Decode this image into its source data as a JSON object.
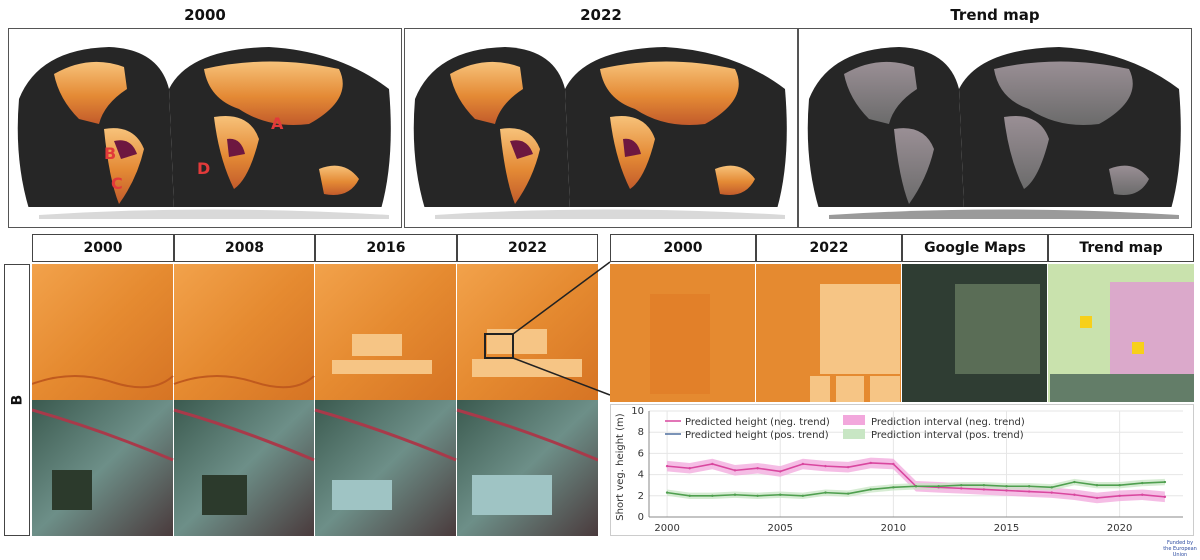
{
  "top_titles": [
    "2000",
    "2022",
    "Trend map"
  ],
  "map_labels": [
    "A",
    "B",
    "C",
    "D"
  ],
  "grid_headers": [
    "2000",
    "2008",
    "2016",
    "2022"
  ],
  "side_label": "B",
  "zoom_headers": [
    "2000",
    "2022",
    "Google Maps",
    "Trend map"
  ],
  "footer": [
    "Funded by",
    "the European Union"
  ],
  "colors": {
    "high": "#f7b56a",
    "mid": "#e07b25",
    "low": "#6d1740",
    "ocean": "#262626",
    "neg": "#e36fb7",
    "pos": "#6cbf6a"
  },
  "chart_data": {
    "type": "line",
    "ylabel": "Short veg. height (m)",
    "xlabel": "",
    "xlim": [
      1999.2,
      2022.8
    ],
    "ylim": [
      0,
      10
    ],
    "x_ticks": [
      2000,
      2005,
      2010,
      2015,
      2020
    ],
    "y_ticks": [
      0,
      2,
      4,
      6,
      8,
      10
    ],
    "grid": true,
    "legend": "top-left",
    "legend_entries": [
      "Predicted height (neg. trend)",
      "Predicted height (pos. trend)",
      "Prediction interval (neg. trend)",
      "Prediction interval (pos. trend)"
    ],
    "x": [
      2000,
      2001,
      2002,
      2003,
      2004,
      2005,
      2006,
      2007,
      2008,
      2009,
      2010,
      2011,
      2012,
      2013,
      2014,
      2015,
      2016,
      2017,
      2018,
      2019,
      2020,
      2021,
      2022
    ],
    "series": [
      {
        "name": "Predicted height (neg. trend)",
        "color": "#d9479f",
        "values": [
          4.8,
          4.6,
          5.0,
          4.4,
          4.6,
          4.3,
          5.0,
          4.8,
          4.7,
          5.1,
          5.0,
          2.9,
          2.8,
          2.7,
          2.6,
          2.5,
          2.4,
          2.3,
          2.1,
          1.8,
          2.0,
          2.1,
          1.9
        ],
        "band": 0.5
      },
      {
        "name": "Predicted height (pos. trend)",
        "color": "#4f9f4f",
        "values": [
          2.3,
          2.0,
          2.0,
          2.1,
          2.0,
          2.1,
          2.0,
          2.3,
          2.2,
          2.6,
          2.8,
          2.9,
          2.9,
          3.0,
          3.0,
          2.9,
          2.9,
          2.8,
          3.3,
          3.0,
          3.0,
          3.2,
          3.3
        ],
        "band": 0.3
      }
    ]
  }
}
